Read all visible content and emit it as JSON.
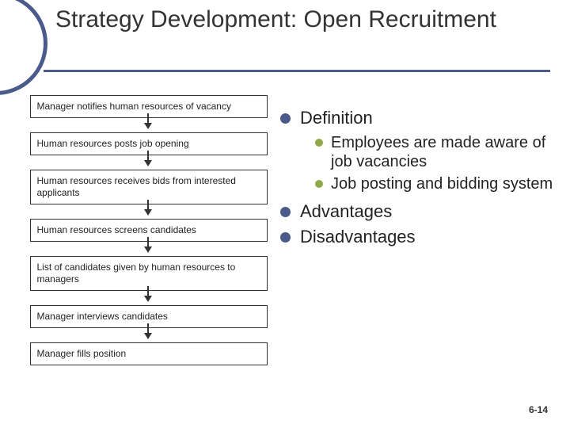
{
  "title": "Strategy Development:  Open Recruitment",
  "accent_color": "#4a5a8a",
  "sub_bullet_color": "#8fa848",
  "flowchart": {
    "box_border": "#333333",
    "box_bg": "#ffffff",
    "font_size": 12,
    "steps": [
      "Manager notifies human resources of vacancy",
      "Human resources posts job opening",
      "Human resources receives bids from interested applicants",
      "Human resources screens candidates",
      "List of candidates given by human resources to managers",
      "Manager interviews candidates",
      "Manager fills position"
    ]
  },
  "content": {
    "items": [
      {
        "label": "Definition",
        "sub": [
          "Employees are made aware of job vacancies",
          "Job posting and bidding system"
        ]
      },
      {
        "label": "Advantages",
        "sub": []
      },
      {
        "label": "Disadvantages",
        "sub": []
      }
    ]
  },
  "page_number": "6-14"
}
